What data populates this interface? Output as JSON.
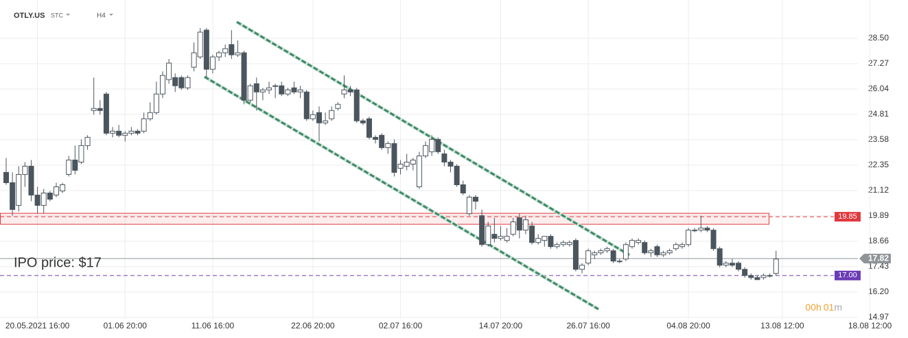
{
  "header": {
    "symbol": "OTLY.US",
    "exchange": "STC",
    "interval": "H4"
  },
  "chart_data": {
    "type": "candlestick",
    "categories": [
      null,
      null,
      null,
      null,
      null,
      "20.05.2021  16:00",
      null,
      null,
      null,
      null,
      null,
      null,
      null,
      null,
      null,
      null,
      null,
      null,
      null,
      "01.06  20:00",
      null,
      null,
      null,
      null,
      null,
      null,
      null,
      null,
      null,
      null,
      null,
      null,
      null,
      "11.06  16:00",
      null,
      null,
      null,
      null,
      null,
      null,
      null,
      null,
      null,
      null,
      null,
      null,
      null,
      null,
      null,
      "22.06  20:00",
      null,
      null,
      null,
      null,
      null,
      null,
      null,
      null,
      null,
      null,
      null,
      null,
      null,
      "02.07  16:00",
      null,
      null,
      null,
      null,
      null,
      null,
      null,
      null,
      null,
      null,
      null,
      null,
      null,
      null,
      null,
      "14.07  20:00",
      null,
      null,
      null,
      null,
      null,
      null,
      null,
      null,
      null,
      null,
      null,
      null,
      null,
      "26.07  16:00",
      null,
      null,
      null,
      null,
      null,
      null,
      null,
      null,
      null,
      null,
      null,
      null,
      null,
      null,
      null,
      "04.08  20:00",
      null,
      null,
      null,
      null,
      null,
      null,
      null,
      null,
      null,
      null,
      null,
      null,
      null,
      null,
      "13.08  12:00",
      null,
      null,
      null,
      null,
      null,
      null,
      null,
      null,
      null,
      null,
      null,
      null,
      null,
      "18.08  12:00"
    ],
    "open": [
      22.0,
      21.5,
      20.4,
      21.9,
      22.3,
      20.9,
      20.4,
      21.0,
      20.9,
      21.1,
      21.9,
      22.6,
      22.5,
      23.3,
      25.0,
      25.1,
      25.8,
      23.9,
      24.0,
      23.8,
      23.9,
      24.0,
      24.0,
      24.6,
      24.9,
      25.8,
      26.5,
      26.6,
      26.6,
      26.1,
      27.1,
      27.6,
      28.9,
      27.0,
      27.6,
      27.8,
      28.2,
      27.7,
      27.8,
      25.5,
      26.3,
      25.9,
      26.0,
      26.2,
      26.2,
      25.8,
      26.1,
      25.9,
      25.9,
      24.6,
      24.9,
      24.4,
      24.6,
      25.1,
      25.8,
      26.0,
      26.0,
      24.5,
      24.6,
      23.7,
      23.8,
      23.2,
      23.4,
      22.2,
      22.3,
      22.4,
      21.3,
      22.8,
      23.0,
      23.6,
      22.9,
      22.5,
      22.3,
      21.4,
      20.0,
      20.8,
      19.9,
      18.5,
      19.0,
      18.8,
      18.7,
      19.0,
      19.8,
      19.2,
      19.4,
      18.6,
      18.7,
      18.9,
      18.4,
      18.5,
      18.5,
      18.7,
      17.3,
      17.6,
      18.0,
      18.1,
      18.2,
      18.2,
      17.7,
      17.8,
      18.4,
      18.6,
      18.6,
      18.1,
      18.4,
      18.0,
      18.1,
      18.3,
      18.4,
      18.5,
      19.2,
      19.2,
      19.3,
      19.2,
      18.3,
      17.5,
      17.6,
      17.6,
      17.3,
      17.0,
      16.9,
      16.9,
      17.0,
      17.1,
      null,
      null,
      null,
      null,
      null,
      null,
      null,
      null,
      null,
      null,
      null,
      null,
      null,
      null,
      null
    ],
    "high": [
      22.7,
      22.0,
      22.3,
      22.5,
      22.6,
      21.3,
      21.2,
      21.1,
      21.5,
      21.5,
      22.8,
      23.3,
      23.6,
      23.8,
      26.6,
      25.5,
      25.9,
      24.2,
      24.3,
      24.0,
      24.2,
      24.1,
      24.9,
      25.4,
      26.4,
      26.9,
      27.5,
      26.8,
      26.7,
      26.7,
      28.3,
      29.0,
      29.0,
      27.7,
      27.9,
      28.2,
      28.9,
      28.4,
      27.9,
      26.3,
      26.6,
      26.1,
      26.4,
      26.3,
      26.4,
      26.1,
      26.4,
      26.2,
      26.0,
      25.0,
      25.2,
      24.9,
      25.2,
      25.4,
      26.7,
      26.2,
      26.1,
      24.6,
      24.7,
      23.8,
      23.9,
      23.5,
      23.6,
      22.6,
      22.9,
      22.7,
      23.0,
      23.5,
      23.8,
      23.7,
      23.1,
      22.6,
      22.4,
      21.6,
      20.9,
      20.9,
      20.2,
      19.6,
      19.8,
      19.4,
      19.3,
      19.8,
      20.0,
      19.9,
      19.6,
      19.0,
      18.9,
      19.0,
      18.6,
      18.7,
      18.7,
      18.8,
      17.6,
      18.3,
      18.2,
      18.3,
      18.4,
      18.3,
      17.8,
      18.6,
      18.8,
      18.8,
      18.7,
      18.3,
      18.5,
      18.2,
      18.3,
      18.6,
      18.6,
      19.3,
      19.3,
      19.9,
      19.4,
      19.3,
      18.4,
      17.7,
      17.8,
      17.7,
      17.4,
      17.1,
      17.0,
      17.1,
      17.1,
      18.2,
      null,
      null,
      null,
      null,
      null,
      null,
      null,
      null,
      null,
      null,
      null,
      null,
      null,
      null,
      null
    ],
    "low": [
      21.4,
      19.9,
      20.1,
      21.3,
      20.6,
      20.0,
      20.0,
      20.6,
      20.8,
      21.0,
      21.8,
      21.9,
      22.4,
      23.1,
      24.8,
      24.8,
      23.8,
      23.7,
      23.7,
      23.5,
      23.8,
      23.8,
      23.9,
      24.5,
      24.8,
      25.6,
      26.3,
      25.9,
      26.0,
      26.0,
      26.9,
      27.5,
      26.6,
      26.8,
      27.4,
      27.6,
      27.5,
      27.6,
      25.3,
      25.4,
      25.0,
      25.5,
      25.8,
      25.6,
      25.7,
      25.7,
      25.8,
      25.6,
      24.5,
      24.5,
      23.5,
      24.3,
      24.5,
      25.0,
      25.6,
      25.7,
      24.4,
      24.3,
      23.6,
      23.4,
      23.1,
      22.9,
      21.8,
      21.9,
      22.1,
      22.1,
      21.2,
      22.7,
      22.8,
      22.9,
      22.3,
      22.0,
      21.3,
      20.9,
      19.9,
      20.2,
      18.4,
      18.4,
      18.6,
      18.7,
      18.6,
      18.9,
      18.8,
      19.0,
      18.5,
      18.5,
      18.4,
      18.3,
      18.3,
      18.4,
      18.4,
      17.2,
      17.1,
      17.5,
      17.8,
      18.0,
      18.1,
      17.6,
      17.6,
      17.7,
      18.3,
      18.5,
      18.0,
      17.9,
      17.9,
      17.9,
      18.0,
      18.2,
      18.3,
      18.4,
      19.1,
      19.1,
      19.1,
      18.2,
      17.4,
      17.4,
      17.4,
      17.2,
      16.9,
      16.8,
      16.8,
      16.8,
      16.9,
      17.0,
      null,
      null,
      null,
      null,
      null,
      null,
      null,
      null,
      null,
      null,
      null,
      null,
      null,
      null,
      null
    ],
    "close": [
      21.5,
      20.2,
      21.9,
      22.3,
      20.9,
      20.4,
      21.0,
      20.7,
      21.3,
      21.4,
      22.6,
      22.1,
      23.3,
      23.7,
      25.1,
      25.0,
      23.9,
      24.0,
      23.8,
      23.9,
      24.0,
      23.9,
      24.6,
      24.9,
      25.8,
      26.7,
      27.3,
      26.2,
      26.1,
      26.6,
      27.8,
      28.8,
      27.0,
      27.6,
      27.8,
      28.0,
      27.7,
      27.8,
      25.5,
      26.2,
      25.9,
      26.0,
      26.1,
      26.2,
      25.8,
      26.0,
      25.9,
      26.0,
      24.6,
      24.8,
      24.4,
      24.5,
      25.0,
      25.3,
      26.0,
      25.9,
      24.5,
      24.4,
      23.7,
      23.6,
      23.2,
      23.4,
      22.0,
      22.4,
      22.5,
      22.6,
      22.8,
      23.3,
      23.6,
      23.0,
      22.5,
      22.3,
      21.4,
      21.0,
      20.8,
      20.6,
      18.5,
      19.4,
      18.8,
      18.9,
      18.9,
      19.6,
      19.2,
      19.7,
      18.6,
      18.8,
      18.9,
      18.4,
      18.5,
      18.6,
      18.6,
      17.3,
      17.5,
      18.2,
      18.1,
      18.2,
      18.3,
      17.7,
      17.7,
      18.5,
      18.7,
      18.7,
      18.1,
      18.2,
      18.0,
      18.1,
      18.2,
      18.5,
      18.5,
      19.2,
      19.2,
      19.3,
      19.2,
      18.3,
      17.5,
      17.6,
      17.5,
      17.3,
      17.0,
      16.9,
      16.8,
      17.0,
      17.0,
      17.8,
      null,
      null,
      null,
      null,
      null,
      null,
      null,
      null,
      null,
      null,
      null,
      null,
      null,
      null,
      null
    ],
    "up_color": "#ffffff",
    "down_color": "#4b555d",
    "ylim": [
      14.9,
      30.36
    ],
    "yticks": [
      14.97,
      {
        "value": 16.2,
        "label": "16.20"
      },
      17.43,
      18.66,
      19.89,
      21.12,
      22.35,
      23.58,
      24.81,
      26.04,
      27.27,
      {
        "value": 28.5,
        "label": "28.50"
      }
    ],
    "grid": true,
    "levels": [
      {
        "value": 19.85,
        "color": "#e0393e",
        "dashed": true,
        "zone": true
      },
      {
        "value": 17.82,
        "color": "#8f9499",
        "dashed": false
      },
      {
        "value": 17,
        "label": "17.00",
        "color": "#6a3cb5",
        "dashed": true
      }
    ],
    "annotation": "IPO price: $17",
    "annotation_color": "#6a3cb5",
    "countdown": [
      "00h",
      "01",
      "m"
    ]
  }
}
